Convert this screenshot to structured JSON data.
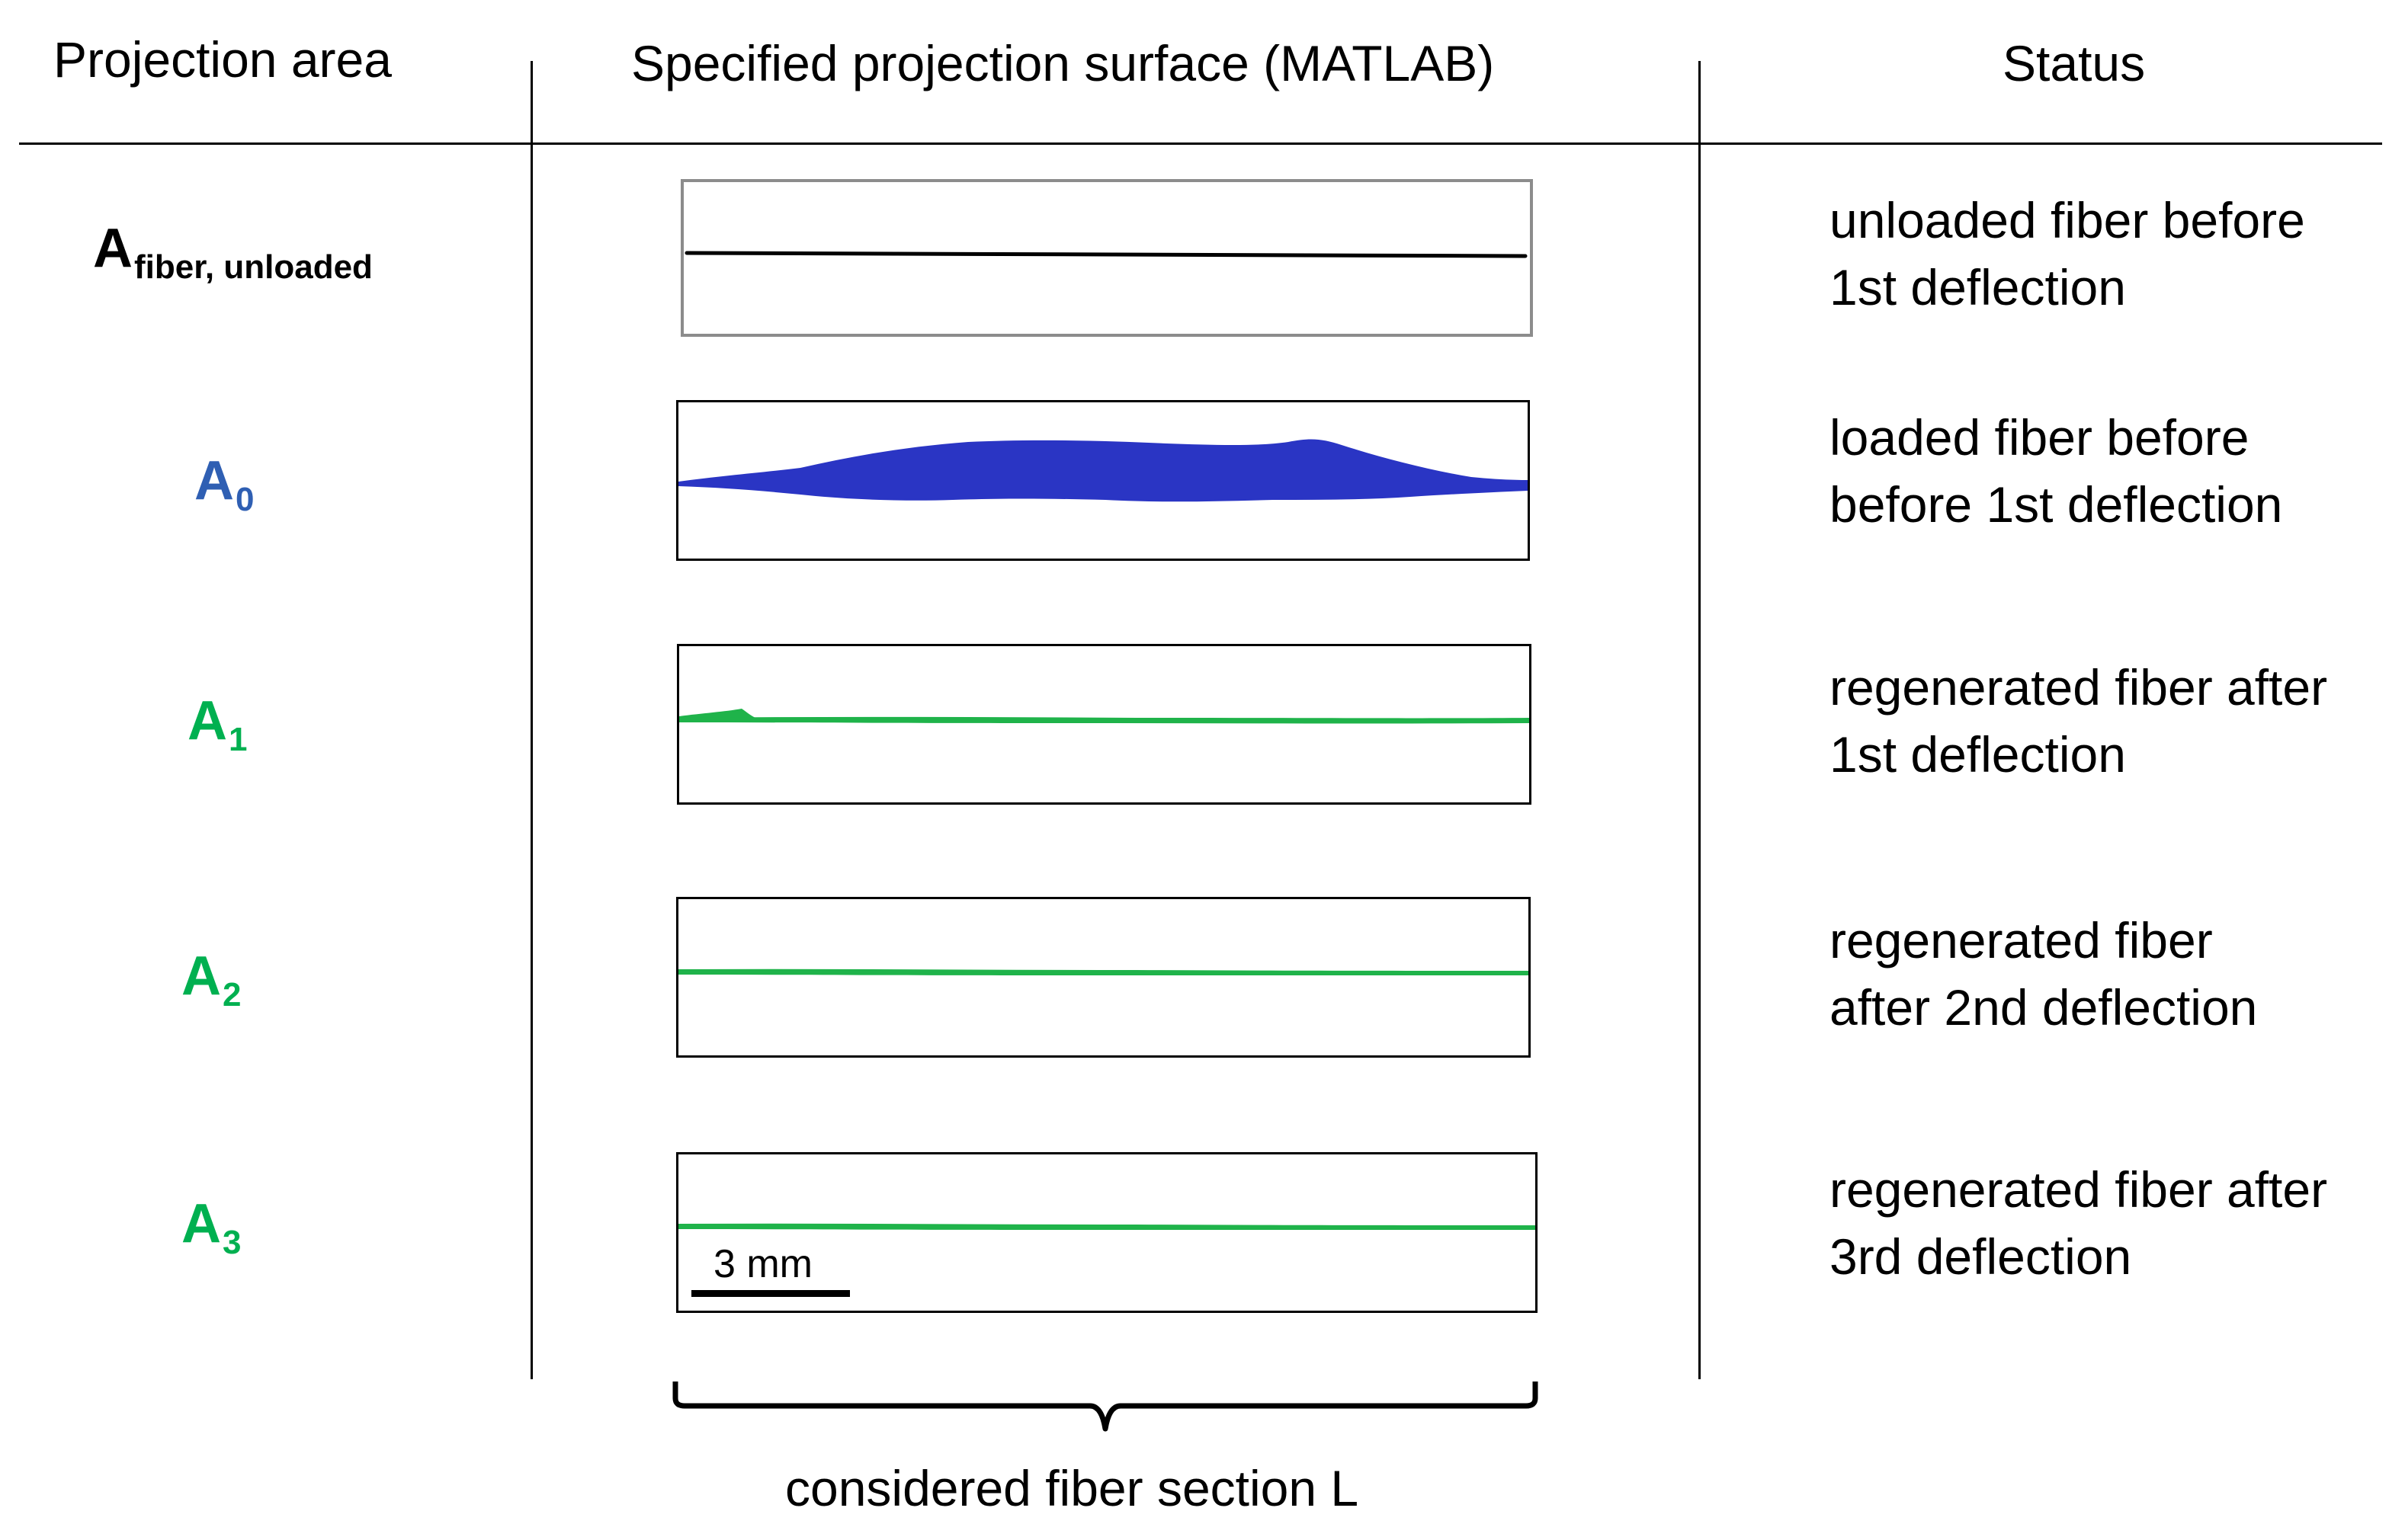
{
  "headers": {
    "projection_area": "Projection area",
    "surface": "Specified projection surface (MATLAB)",
    "status": "Status"
  },
  "rows": [
    {
      "label_main": "A",
      "label_sub": "fiber, unloaded",
      "label_color": "#000000",
      "fiber_color": "#000000",
      "status_line1": "unloaded fiber before",
      "status_line2": "1st deflection"
    },
    {
      "label_main": "A",
      "label_sub": "0",
      "label_color": "#2f5fb3",
      "fiber_color": "#2a35c4",
      "status_line1": "loaded fiber before",
      "status_line2": "before 1st deflection"
    },
    {
      "label_main": "A",
      "label_sub": "1",
      "label_color": "#00b050",
      "fiber_color": "#1fb34a",
      "status_line1": "regenerated fiber after",
      "status_line2": "1st deflection"
    },
    {
      "label_main": "A",
      "label_sub": "2",
      "label_color": "#00b050",
      "fiber_color": "#1fb34a",
      "status_line1": "regenerated fiber",
      "status_line2": "after 2nd deflection"
    },
    {
      "label_main": "A",
      "label_sub": "3",
      "label_color": "#00b050",
      "fiber_color": "#1fb34a",
      "status_line1": "regenerated fiber after",
      "status_line2": "3rd deflection"
    }
  ],
  "scale_bar": {
    "label": "3 mm"
  },
  "brace_label": "considered fiber section L"
}
